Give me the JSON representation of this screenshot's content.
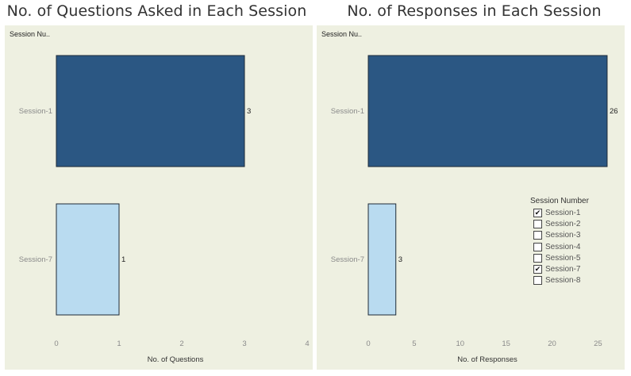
{
  "chart_data": [
    {
      "type": "bar",
      "orientation": "horizontal",
      "title": "No. of Questions Asked in Each Session",
      "row_header": "Session Nu..",
      "xlabel": "No. of Questions",
      "categories": [
        "Session-1",
        "Session-7"
      ],
      "values": [
        3,
        1
      ],
      "colors": [
        "#2b5783",
        "#b9dbf0"
      ],
      "xlim": [
        0,
        4
      ],
      "ticks": [
        0,
        1,
        2,
        3,
        4
      ],
      "data_labels": true
    },
    {
      "type": "bar",
      "orientation": "horizontal",
      "title": "No. of Responses in Each Session",
      "row_header": "Session Nu..",
      "xlabel": "No. of Responses",
      "categories": [
        "Session-1",
        "Session-7"
      ],
      "values": [
        26,
        3
      ],
      "colors": [
        "#2b5783",
        "#b9dbf0"
      ],
      "xlim": [
        0,
        27.3
      ],
      "ticks": [
        0,
        5,
        10,
        15,
        20,
        25
      ],
      "data_labels": true
    }
  ],
  "legend": {
    "title": "Session Number",
    "items": [
      {
        "label": "Session-1",
        "checked": true
      },
      {
        "label": "Session-2",
        "checked": false
      },
      {
        "label": "Session-3",
        "checked": false
      },
      {
        "label": "Session-4",
        "checked": false
      },
      {
        "label": "Session-5",
        "checked": false
      },
      {
        "label": "Session-7",
        "checked": true
      },
      {
        "label": "Session-8",
        "checked": false
      }
    ],
    "check_glyph": "✔"
  }
}
